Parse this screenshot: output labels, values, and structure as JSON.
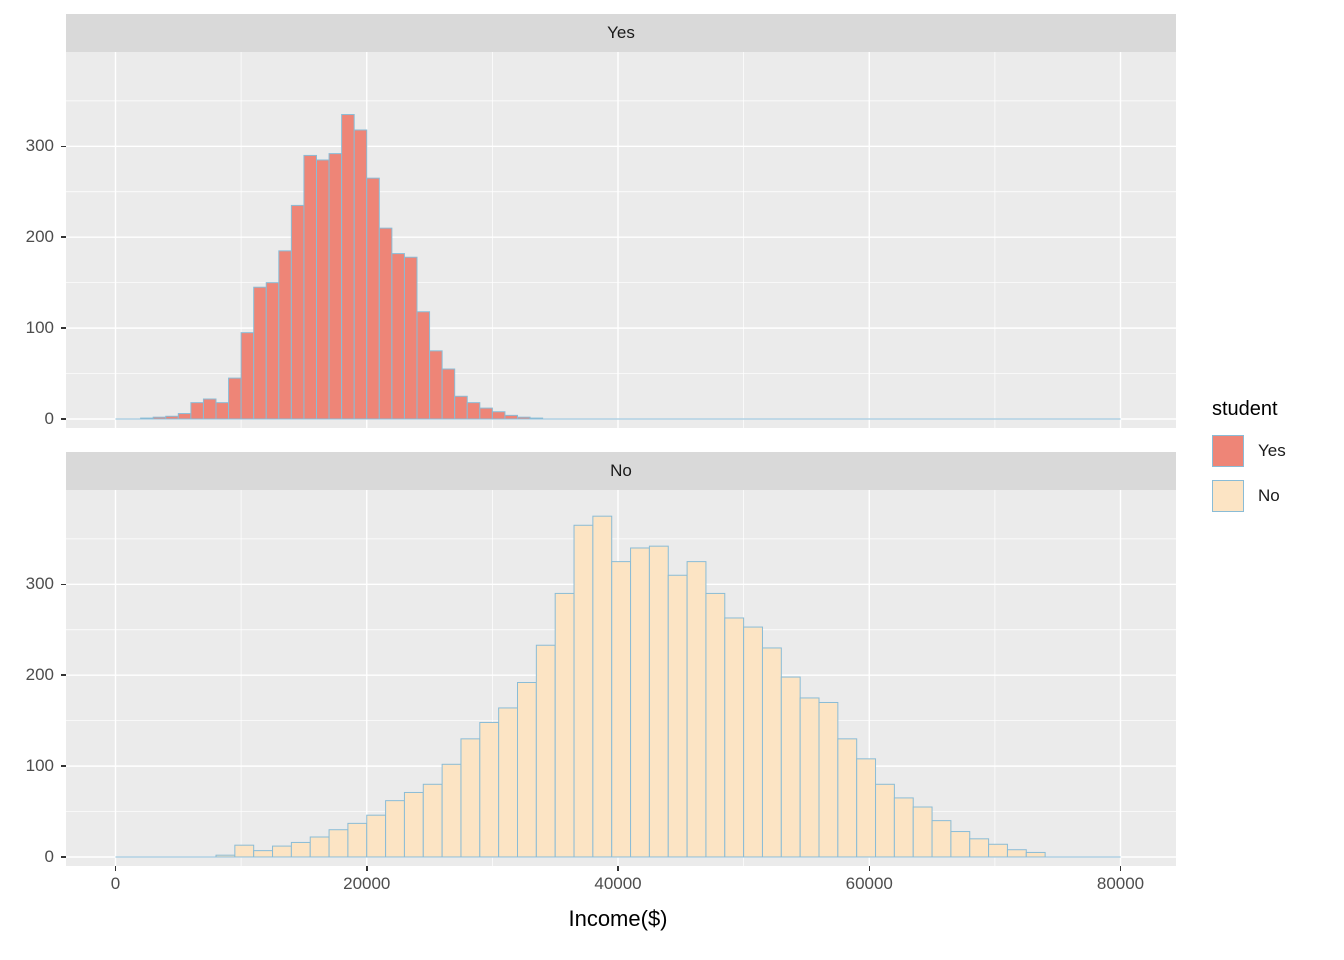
{
  "legend": {
    "title": "student",
    "items": [
      {
        "label": "Yes",
        "fill": "#ee8577",
        "stroke": "#8abcd6"
      },
      {
        "label": "No",
        "fill": "#fce4c4",
        "stroke": "#8abcd6"
      }
    ]
  },
  "chart_data": {
    "type": "bar",
    "subtype": "faceted-histogram",
    "title": "",
    "facet_variable": "student",
    "xlabel": "Income($)",
    "ylabel": "",
    "x_range": [
      0,
      80000
    ],
    "y_range": [
      0,
      395
    ],
    "x_ticks": [
      0,
      20000,
      40000,
      60000,
      80000
    ],
    "x_tick_labels": [
      "0",
      "20000",
      "40000",
      "60000",
      "80000"
    ],
    "x_minor_ticks": [
      10000,
      30000,
      50000,
      70000
    ],
    "y_ticks": [
      0,
      100,
      200,
      300
    ],
    "y_tick_labels": [
      "0",
      "100",
      "200",
      "300"
    ],
    "y_minor_ticks": [
      50,
      150,
      250,
      350
    ],
    "panel_background": "#ebebeb",
    "strip_background": "#d9d9d9",
    "gridline_color": "#ffffff",
    "facets": [
      {
        "name": "Yes",
        "fill": "#ee8577",
        "stroke": "#8abcd6",
        "bin_start": 2000,
        "bin_width": 1000,
        "counts": [
          1,
          2,
          3,
          6,
          18,
          22,
          18,
          45,
          95,
          145,
          150,
          185,
          235,
          290,
          285,
          292,
          335,
          318,
          265,
          210,
          182,
          178,
          118,
          75,
          55,
          25,
          18,
          12,
          8,
          4,
          2,
          1
        ]
      },
      {
        "name": "No",
        "fill": "#fce4c4",
        "stroke": "#8abcd6",
        "bin_start": 8000,
        "bin_width": 1500,
        "counts": [
          2,
          13,
          7,
          12,
          16,
          22,
          30,
          37,
          46,
          62,
          71,
          80,
          102,
          130,
          148,
          164,
          192,
          233,
          290,
          365,
          375,
          325,
          340,
          342,
          310,
          325,
          290,
          263,
          253,
          230,
          198,
          175,
          170,
          130,
          108,
          80,
          65,
          55,
          40,
          28,
          20,
          14,
          8,
          5
        ]
      }
    ]
  }
}
